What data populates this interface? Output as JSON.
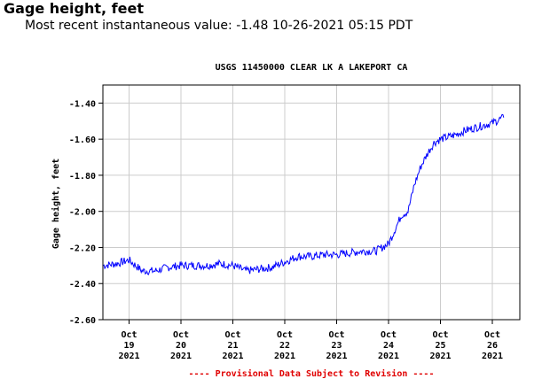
{
  "header": {
    "title": "Gage height, feet",
    "recent_value": "Most recent instantaneous value: -1.48 10-26-2021   05:15 PDT"
  },
  "chart_data": {
    "type": "line",
    "title": "USGS 11450000 CLEAR LK A LAKEPORT CA",
    "ylabel": "Gage height, feet",
    "xlabel": "",
    "ylim": [
      -2.6,
      -1.3
    ],
    "yticks": [
      "-1.40",
      "-1.60",
      "-1.80",
      "-2.00",
      "-2.20",
      "-2.40",
      "-2.60"
    ],
    "ytick_values": [
      -1.4,
      -1.6,
      -1.8,
      -2.0,
      -2.2,
      -2.4,
      -2.6
    ],
    "xticks": [
      {
        "month": "Oct",
        "day": "19",
        "year": "2021"
      },
      {
        "month": "Oct",
        "day": "20",
        "year": "2021"
      },
      {
        "month": "Oct",
        "day": "21",
        "year": "2021"
      },
      {
        "month": "Oct",
        "day": "22",
        "year": "2021"
      },
      {
        "month": "Oct",
        "day": "23",
        "year": "2021"
      },
      {
        "month": "Oct",
        "day": "24",
        "year": "2021"
      },
      {
        "month": "Oct",
        "day": "25",
        "year": "2021"
      },
      {
        "month": "Oct",
        "day": "26",
        "year": "2021"
      }
    ],
    "grid": true,
    "line_color": "#0000ff",
    "series": [
      {
        "x": [
          "2021-10-18 12:00",
          "2021-10-18 18:00",
          "2021-10-19 00:00",
          "2021-10-19 06:00",
          "2021-10-19 12:00",
          "2021-10-19 18:00",
          "2021-10-20 00:00",
          "2021-10-20 06:00",
          "2021-10-20 12:00",
          "2021-10-20 18:00",
          "2021-10-21 00:00",
          "2021-10-21 06:00",
          "2021-10-21 12:00",
          "2021-10-21 18:00",
          "2021-10-22 00:00",
          "2021-10-22 06:00",
          "2021-10-22 12:00",
          "2021-10-22 18:00",
          "2021-10-23 00:00",
          "2021-10-23 06:00",
          "2021-10-23 12:00",
          "2021-10-23 18:00",
          "2021-10-24 00:00",
          "2021-10-24 03:00",
          "2021-10-24 06:00",
          "2021-10-24 09:00",
          "2021-10-24 12:00",
          "2021-10-24 15:00",
          "2021-10-24 18:00",
          "2021-10-24 21:00",
          "2021-10-25 00:00",
          "2021-10-25 06:00",
          "2021-10-25 12:00",
          "2021-10-25 18:00",
          "2021-10-26 00:00",
          "2021-10-26 05:15"
        ],
        "values": [
          -2.3,
          -2.29,
          -2.27,
          -2.33,
          -2.33,
          -2.31,
          -2.3,
          -2.3,
          -2.3,
          -2.29,
          -2.3,
          -2.33,
          -2.32,
          -2.31,
          -2.28,
          -2.25,
          -2.25,
          -2.24,
          -2.24,
          -2.23,
          -2.22,
          -2.22,
          -2.18,
          -2.1,
          -2.02,
          -2.0,
          -1.85,
          -1.75,
          -1.68,
          -1.62,
          -1.6,
          -1.58,
          -1.55,
          -1.53,
          -1.51,
          -1.48
        ]
      }
    ],
    "footnote": "---- Provisional Data Subject to Revision ----"
  }
}
